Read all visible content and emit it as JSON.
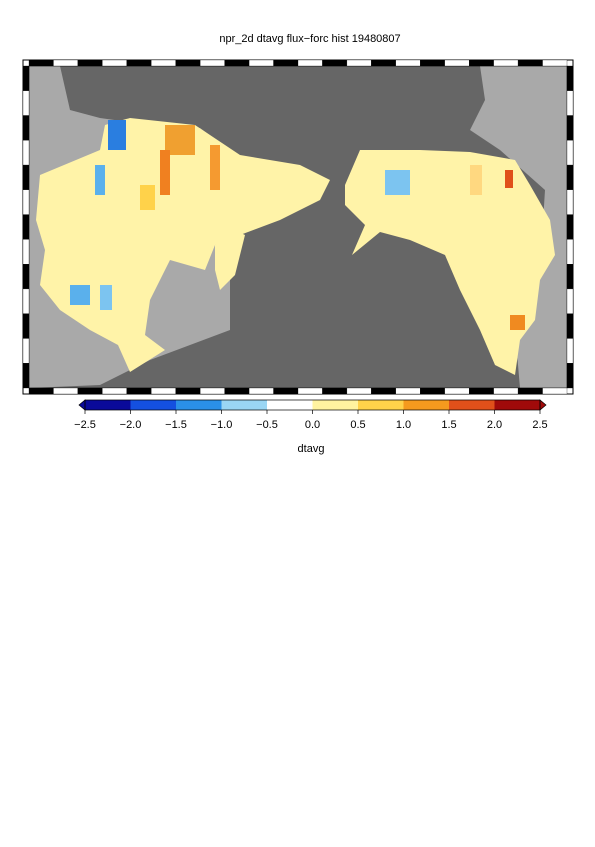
{
  "title": "npr_2d dtavg flux−forc hist 19480807",
  "colorbar": {
    "label": "dtavg",
    "lim": [
      -2.5,
      2.5
    ],
    "ticks": [
      {
        "value": -2.5,
        "label": "−2.5"
      },
      {
        "value": -2,
        "label": "−2.0"
      },
      {
        "value": -1.5,
        "label": "−1.5"
      },
      {
        "value": -1,
        "label": "−1.0"
      },
      {
        "value": -0.5,
        "label": "−0.5"
      },
      {
        "value": 0,
        "label": "0.0"
      },
      0.5,
      {
        "value": 1,
        "label": "1.0"
      },
      1.5,
      {
        "value": 2,
        "label": "2.0"
      },
      2.5
    ],
    "colors": [
      "#0a0a9a",
      "#1450e0",
      "#2a90e8",
      "#9ad6f4",
      "#ffffff",
      "#fff3a0",
      "#ffd24a",
      "#f59a1e",
      "#e0501a",
      "#a00a0a"
    ]
  }
}
